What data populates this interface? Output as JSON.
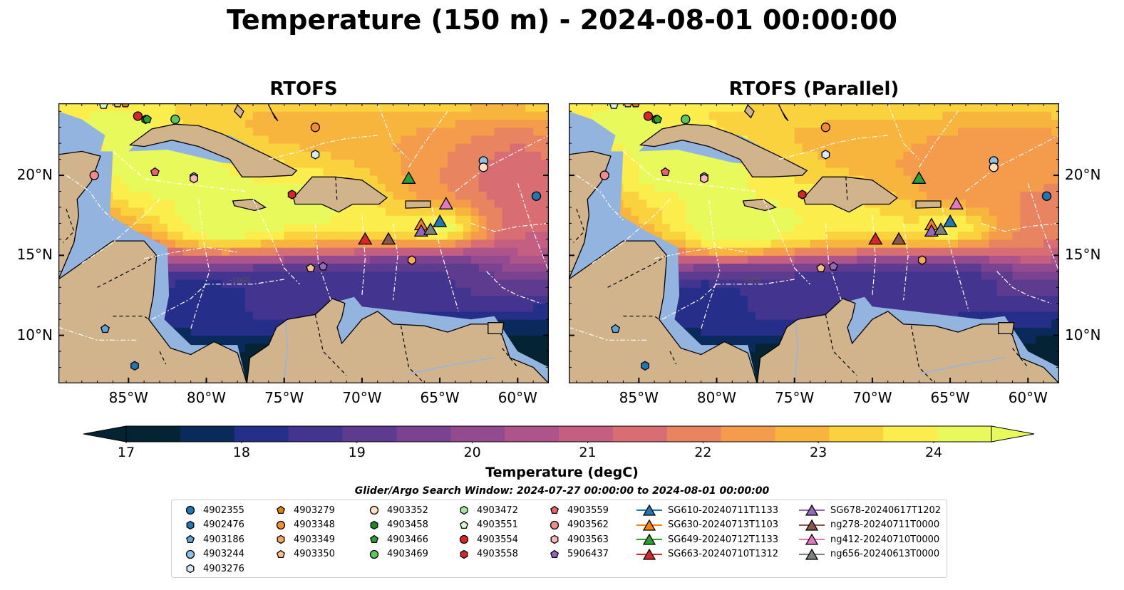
{
  "title": "Temperature (150 m) - 2024-08-01 00:00:00",
  "panels": [
    {
      "title": "RTOFS",
      "variant": "rtofs"
    },
    {
      "title": "RTOFS (Parallel)",
      "variant": "parallel"
    }
  ],
  "axes": {
    "lon_ticks": [
      "85°W",
      "80°W",
      "75°W",
      "70°W",
      "65°W",
      "60°W"
    ],
    "lat_ticks": [
      "20°N",
      "15°N",
      "10°N"
    ],
    "lon_range": [
      -89.5,
      -58
    ],
    "lat_range": [
      7,
      24.5
    ]
  },
  "colorbar": {
    "label": "Temperature (degC)",
    "ticks": [
      "17",
      "18",
      "19",
      "20",
      "21",
      "22",
      "23",
      "24"
    ],
    "range": [
      17,
      24.5
    ],
    "extend": "both",
    "colormap": "thermal",
    "colors": [
      "#042333",
      "#0b2a5c",
      "#252f8a",
      "#43358f",
      "#5d3b8f",
      "#7a4290",
      "#944a8f",
      "#ad548b",
      "#c45f82",
      "#d86e73",
      "#e98460",
      "#f49b4c",
      "#f8b53d",
      "#f9d23d",
      "#fbee4c",
      "#e8fa5b"
    ]
  },
  "window_label": "Glider/Argo Search Window: 2024-07-27 00:00:00 to 2024-08-01 00:00:00",
  "land_color": "#d2b48c",
  "shelf_color": "#94b4e0",
  "legend": [
    {
      "label": "4902355",
      "marker": "circle",
      "color": "#1f77b4"
    },
    {
      "label": "4902476",
      "marker": "hexagon",
      "color": "#1f77b4"
    },
    {
      "label": "4903186",
      "marker": "pentagon",
      "color": "#5da5da"
    },
    {
      "label": "4903244",
      "marker": "circle",
      "color": "#8ec1e6"
    },
    {
      "label": "4903276",
      "marker": "hexagon",
      "color": "#d6ecfa"
    },
    {
      "label": "4903279",
      "marker": "pentagon",
      "color": "#e67e00"
    },
    {
      "label": "4903348",
      "marker": "circle",
      "color": "#f28e2b"
    },
    {
      "label": "4903349",
      "marker": "hexagon",
      "color": "#f7a85a"
    },
    {
      "label": "4903350",
      "marker": "pentagon",
      "color": "#fbc08a"
    },
    {
      "label": "4903352",
      "marker": "circle",
      "color": "#fde0c0"
    },
    {
      "label": "4903458",
      "marker": "hexagon",
      "color": "#1f8a1f"
    },
    {
      "label": "4903466",
      "marker": "pentagon",
      "color": "#2ca02c"
    },
    {
      "label": "4903469",
      "marker": "circle",
      "color": "#5cc85c"
    },
    {
      "label": "4903472",
      "marker": "hexagon",
      "color": "#a8e3a0"
    },
    {
      "label": "4903551",
      "marker": "pentagon",
      "color": "#d8f5d0"
    },
    {
      "label": "4903554",
      "marker": "circle",
      "color": "#d62728"
    },
    {
      "label": "4903558",
      "marker": "hexagon",
      "color": "#d62728"
    },
    {
      "label": "4903559",
      "marker": "pentagon",
      "color": "#e8646a"
    },
    {
      "label": "4903562",
      "marker": "circle",
      "color": "#f28c8c"
    },
    {
      "label": "4903563",
      "marker": "hexagon",
      "color": "#f8b8b8"
    },
    {
      "label": "5906437",
      "marker": "pentagon",
      "color": "#9467bd"
    },
    {
      "label": "SG610-20240711T1133",
      "marker": "triangle",
      "color": "#1f77b4"
    },
    {
      "label": "SG630-20240713T1103",
      "marker": "triangle",
      "color": "#ff7f0e"
    },
    {
      "label": "SG649-20240712T1133",
      "marker": "triangle",
      "color": "#2ca02c"
    },
    {
      "label": "SG663-20240710T1312",
      "marker": "triangle",
      "color": "#d62728"
    },
    {
      "label": "SG678-20240617T1202",
      "marker": "triangle",
      "color": "#9467bd"
    },
    {
      "label": "ng278-20240711T0000",
      "marker": "triangle",
      "color": "#8c564b"
    },
    {
      "label": "ng412-20240710T0000",
      "marker": "triangle",
      "color": "#e377c2"
    },
    {
      "label": "ng656-20240613T0000",
      "marker": "triangle",
      "color": "#7f7f7f"
    }
  ],
  "markers": [
    {
      "id": "4902355",
      "lon": -58.8,
      "lat": 18.7
    },
    {
      "id": "4902476",
      "lon": -84.6,
      "lat": 8.1
    },
    {
      "id": "4903186",
      "lon": -86.5,
      "lat": 10.4
    },
    {
      "id": "4903244",
      "lon": -62.2,
      "lat": 20.9
    },
    {
      "id": "4903276",
      "lon": -73.0,
      "lat": 21.3
    },
    {
      "id": "4903279",
      "lon": -85.2,
      "lat": 24.5
    },
    {
      "id": "4903348",
      "lon": -73.0,
      "lat": 23.0
    },
    {
      "id": "4903349",
      "lon": -66.8,
      "lat": 14.7
    },
    {
      "id": "4903350",
      "lon": -85.7,
      "lat": 24.5
    },
    {
      "id": "4903352",
      "lon": -62.2,
      "lat": 20.5
    },
    {
      "id": "4903458",
      "lon": -83.9,
      "lat": 23.5
    },
    {
      "id": "4903466",
      "lon": -83.8,
      "lat": 23.5
    },
    {
      "id": "4903469",
      "lon": -82.0,
      "lat": 23.5
    },
    {
      "id": "4903472",
      "lon": -80.8,
      "lat": 19.9
    },
    {
      "id": "4903551",
      "lon": -86.6,
      "lat": 24.4
    },
    {
      "id": "4903554",
      "lon": -84.4,
      "lat": 23.7
    },
    {
      "id": "4903558",
      "lon": -74.5,
      "lat": 18.8
    },
    {
      "id": "4903559",
      "lon": -83.3,
      "lat": 20.2
    },
    {
      "id": "4903562",
      "lon": -87.2,
      "lat": 20.0
    },
    {
      "id": "4903563",
      "lon": -80.8,
      "lat": 19.8
    },
    {
      "id": "5906437",
      "lon": -72.5,
      "lat": 14.3
    },
    {
      "id": "4903350",
      "lon": -73.3,
      "lat": 14.2
    },
    {
      "id": "SG610-20240711T1133",
      "lon": -65.0,
      "lat": 17.1
    },
    {
      "id": "SG630-20240713T1103",
      "lon": -66.2,
      "lat": 16.9
    },
    {
      "id": "SG649-20240712T1133",
      "lon": -67.0,
      "lat": 19.8
    },
    {
      "id": "SG663-20240710T1312",
      "lon": -69.8,
      "lat": 16.0
    },
    {
      "id": "SG678-20240617T1202",
      "lon": -66.2,
      "lat": 16.5
    },
    {
      "id": "ng278-20240711T0000",
      "lon": -68.3,
      "lat": 16.0
    },
    {
      "id": "ng412-20240710T0000",
      "lon": -64.6,
      "lat": 18.2
    },
    {
      "id": "ng656-20240613T0000",
      "lon": -65.6,
      "lat": 16.6
    }
  ]
}
